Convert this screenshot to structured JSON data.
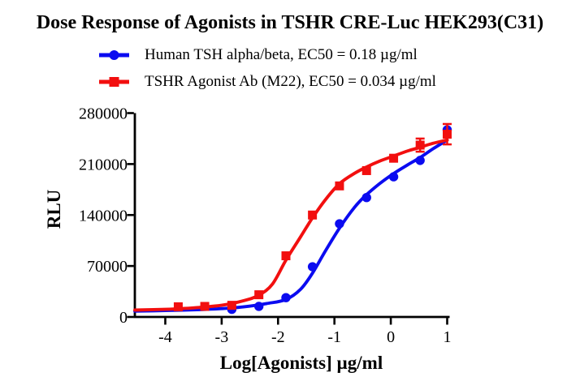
{
  "title": "Dose Response of Agonists in TSHR CRE-Luc HEK293(C31)",
  "colors": {
    "axis": "#000000",
    "background": "#ffffff",
    "series_blue": "#0b0bf0",
    "series_red": "#f20f0f"
  },
  "chart_data": {
    "type": "scatter",
    "title": "Dose Response of Agonists in TSHR CRE-Luc HEK293(C31)",
    "xlabel": "Log[Agonists] µg/ml",
    "ylabel": "RLU",
    "xlim": [
      -4.54,
      1.0
    ],
    "ylim": [
      0,
      280000
    ],
    "x_ticks": [
      -4,
      -3,
      -2,
      -1,
      0,
      1
    ],
    "x_tick_labels": [
      "-4",
      "-3",
      "-2",
      "-1",
      "0",
      "1"
    ],
    "y_ticks": [
      0,
      70000,
      140000,
      210000,
      280000
    ],
    "y_tick_labels": [
      "0",
      "70000",
      "140000",
      "210000",
      "280000"
    ],
    "grid": false,
    "legend_position": "top-left",
    "series": [
      {
        "name": "Human TSH alpha/beta, EC50 = 0.18 µg/ml",
        "ec50_ug_ml": 0.18,
        "color": "#0b0bf0",
        "marker": "circle",
        "points": [
          {
            "x": -2.82,
            "y": 10500
          },
          {
            "x": -2.34,
            "y": 14500
          },
          {
            "x": -1.86,
            "y": 26500
          },
          {
            "x": -1.39,
            "y": 69000
          },
          {
            "x": -0.91,
            "y": 128000
          },
          {
            "x": -0.43,
            "y": 164000
          },
          {
            "x": 0.05,
            "y": 192500
          },
          {
            "x": 0.52,
            "y": 215000
          },
          {
            "x": 1.0,
            "y": 257000
          }
        ],
        "fit": [
          [
            -4.54,
            8000
          ],
          [
            -4.0,
            8800
          ],
          [
            -3.5,
            9800
          ],
          [
            -3.0,
            11500
          ],
          [
            -2.6,
            14000
          ],
          [
            -2.2,
            18500
          ],
          [
            -1.86,
            24000
          ],
          [
            -1.6,
            38000
          ],
          [
            -1.39,
            60000
          ],
          [
            -1.15,
            92000
          ],
          [
            -0.91,
            122000
          ],
          [
            -0.65,
            150000
          ],
          [
            -0.43,
            168000
          ],
          [
            -0.2,
            183000
          ],
          [
            0.05,
            197000
          ],
          [
            0.3,
            209000
          ],
          [
            0.52,
            219000
          ],
          [
            0.75,
            231000
          ],
          [
            1.0,
            243000
          ]
        ]
      },
      {
        "name": "TSHR Agonist Ab (M22), EC50 = 0.034 µg/ml",
        "ec50_ug_ml": 0.034,
        "color": "#f20f0f",
        "marker": "square",
        "points": [
          {
            "x": -3.77,
            "y": 14000
          },
          {
            "x": -3.3,
            "y": 14500
          },
          {
            "x": -2.82,
            "y": 16000
          },
          {
            "x": -2.34,
            "y": 30500
          },
          {
            "x": -1.86,
            "y": 84000
          },
          {
            "x": -1.39,
            "y": 140000
          },
          {
            "x": -0.91,
            "y": 180000
          },
          {
            "x": -0.43,
            "y": 201000
          },
          {
            "x": 0.05,
            "y": 218000
          },
          {
            "x": 0.52,
            "y": 236000,
            "err": 9000
          },
          {
            "x": 1.0,
            "y": 251000,
            "err": 14000
          }
        ],
        "fit": [
          [
            -4.54,
            9500
          ],
          [
            -4.0,
            10500
          ],
          [
            -3.5,
            12500
          ],
          [
            -3.0,
            16000
          ],
          [
            -2.6,
            22500
          ],
          [
            -2.34,
            30000
          ],
          [
            -2.1,
            45000
          ],
          [
            -1.86,
            78000
          ],
          [
            -1.6,
            110000
          ],
          [
            -1.39,
            136000
          ],
          [
            -1.15,
            162000
          ],
          [
            -0.91,
            183000
          ],
          [
            -0.65,
            197000
          ],
          [
            -0.43,
            206000
          ],
          [
            -0.2,
            214000
          ],
          [
            0.05,
            221000
          ],
          [
            0.3,
            228000
          ],
          [
            0.52,
            233000
          ],
          [
            0.75,
            238500
          ],
          [
            1.0,
            243000
          ]
        ]
      }
    ]
  }
}
